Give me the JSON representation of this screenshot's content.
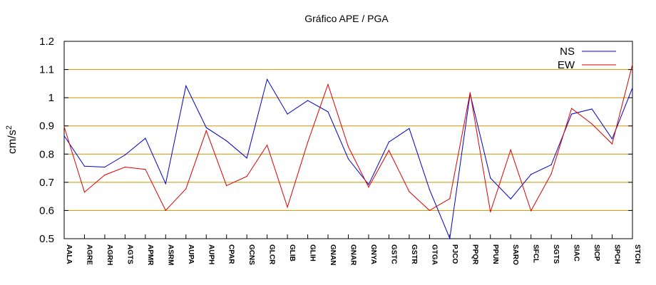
{
  "chart_data": {
    "type": "line",
    "title": "Gráfico  APE / PGA",
    "ylabel": "cm/s",
    "ylabel_superscript": "2",
    "ylim": [
      0.5,
      1.2
    ],
    "yticks": [
      0.5,
      0.6,
      0.7,
      0.8,
      0.9,
      1,
      1.1,
      1.2
    ],
    "ytick_labels": [
      "0.5",
      "0.6",
      "0.7",
      "0.8",
      "0.9",
      "1",
      "1.1",
      "1.2"
    ],
    "grid": "horizontal",
    "legend_position": "top-right",
    "categories": [
      "AALA",
      "AGRE",
      "AGRH",
      "AGTS",
      "APMR",
      "ASRM",
      "AUPA",
      "AUPH",
      "CPAR",
      "GCNS",
      "GLCR",
      "GLIB",
      "GLIH",
      "GNAN",
      "GNAR",
      "GNYA",
      "GSTC",
      "GSTR",
      "GTGA",
      "PJCO",
      "PPQR",
      "PPUN",
      "SARO",
      "SFCL",
      "SGTS",
      "SIAC",
      "SICP",
      "SPCH",
      "STCH"
    ],
    "series": [
      {
        "name": "NS",
        "color": "#0000cc",
        "values": [
          0.865,
          0.757,
          0.754,
          0.797,
          0.856,
          0.695,
          1.042,
          0.894,
          0.847,
          0.786,
          1.065,
          0.942,
          0.99,
          0.95,
          0.783,
          0.692,
          0.843,
          0.891,
          0.674,
          0.501,
          1.014,
          0.715,
          0.641,
          0.728,
          0.762,
          0.942,
          0.96,
          0.854,
          1.035
        ]
      },
      {
        "name": "EW",
        "color": "#dd0000",
        "values": [
          0.897,
          0.665,
          0.726,
          0.754,
          0.746,
          0.6,
          0.677,
          0.883,
          0.688,
          0.721,
          0.832,
          0.612,
          0.842,
          1.047,
          0.826,
          0.683,
          0.813,
          0.667,
          0.6,
          0.642,
          1.018,
          0.595,
          0.815,
          0.599,
          0.73,
          0.962,
          0.907,
          0.836,
          1.118
        ]
      }
    ],
    "grid_color": "#c89600"
  }
}
